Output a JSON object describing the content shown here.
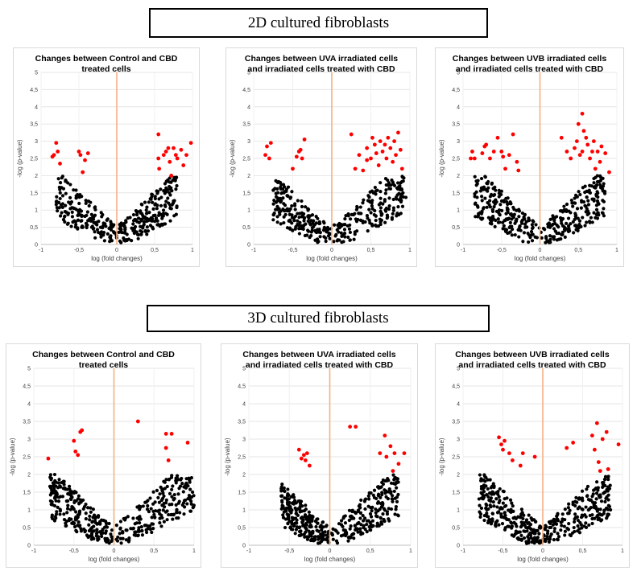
{
  "figure": {
    "section_2d": "2D cultured fibroblasts",
    "section_3d": "3D cultured fibroblasts"
  },
  "chart_data": [
    {
      "type": "scatter",
      "section": "2D cultured fibroblasts",
      "title_lines": [
        "Changes between Control and CBD",
        "treated cells"
      ],
      "xlabel": "log (fold changes)",
      "ylabel": "-log (p-value)",
      "xlim": [
        -1,
        1
      ],
      "ylim": [
        0,
        5
      ],
      "xticks": [
        "-1",
        "-0,5",
        "0",
        "0,5",
        "1"
      ],
      "yticks": [
        "0",
        "0,5",
        "1",
        "1,5",
        "2",
        "2,5",
        "3",
        "3,5",
        "4",
        "4,5",
        "5"
      ],
      "reference_line_x": 0,
      "reference_color": "#f4b183",
      "bulk_color": "#000000",
      "significant_color": "#ff0000",
      "bulk_shape": {
        "xmin": -0.8,
        "xmax": 0.8,
        "min_floor": 0.05,
        "max_ceiling": 2.0,
        "n": 360,
        "seed": 11
      },
      "significant_points": [
        [
          -0.85,
          2.55
        ],
        [
          -0.83,
          2.6
        ],
        [
          -0.8,
          2.95
        ],
        [
          -0.78,
          2.7
        ],
        [
          -0.75,
          2.35
        ],
        [
          -0.5,
          2.7
        ],
        [
          -0.48,
          2.6
        ],
        [
          -0.45,
          2.1
        ],
        [
          -0.42,
          2.45
        ],
        [
          -0.38,
          2.65
        ],
        [
          0.55,
          3.2
        ],
        [
          0.55,
          2.5
        ],
        [
          0.56,
          2.2
        ],
        [
          0.62,
          2.6
        ],
        [
          0.65,
          2.7
        ],
        [
          0.68,
          2.8
        ],
        [
          0.7,
          2.4
        ],
        [
          0.72,
          2.0
        ],
        [
          0.75,
          2.8
        ],
        [
          0.78,
          2.6
        ],
        [
          0.8,
          2.5
        ],
        [
          0.85,
          2.75
        ],
        [
          0.88,
          2.3
        ],
        [
          0.92,
          2.6
        ],
        [
          0.98,
          2.95
        ]
      ]
    },
    {
      "type": "scatter",
      "section": "2D cultured fibroblasts",
      "title_lines": [
        "Changes between UVA irradiated cells",
        "and irradiated cells treated with CBD"
      ],
      "xlabel": "log (fold changes)",
      "ylabel": "-log (p-value)",
      "xlim": [
        -1,
        1
      ],
      "ylim": [
        0,
        5
      ],
      "xticks": [
        "-1",
        "-0,5",
        "0",
        "0,5",
        "1"
      ],
      "yticks": [
        "0",
        "0,5",
        "1",
        "1,5",
        "2",
        "2,5",
        "3",
        "3,5",
        "4",
        "4,5",
        "5"
      ],
      "reference_line_x": 0,
      "reference_color": "#f4b183",
      "bulk_color": "#000000",
      "significant_color": "#ff0000",
      "bulk_shape": {
        "xmin": -0.75,
        "xmax": 0.95,
        "min_floor": 0.05,
        "max_ceiling": 2.0,
        "n": 360,
        "seed": 23
      },
      "significant_points": [
        [
          -0.85,
          2.6
        ],
        [
          -0.83,
          2.85
        ],
        [
          -0.8,
          2.5
        ],
        [
          -0.78,
          2.95
        ],
        [
          -0.5,
          2.2
        ],
        [
          -0.45,
          2.55
        ],
        [
          -0.42,
          2.7
        ],
        [
          -0.4,
          2.75
        ],
        [
          -0.38,
          2.5
        ],
        [
          -0.35,
          3.05
        ],
        [
          0.25,
          3.2
        ],
        [
          0.3,
          2.2
        ],
        [
          0.35,
          2.6
        ],
        [
          0.4,
          2.15
        ],
        [
          0.45,
          2.8
        ],
        [
          0.45,
          2.45
        ],
        [
          0.5,
          2.5
        ],
        [
          0.52,
          3.1
        ],
        [
          0.55,
          2.9
        ],
        [
          0.57,
          2.65
        ],
        [
          0.6,
          2.3
        ],
        [
          0.62,
          3.0
        ],
        [
          0.65,
          2.7
        ],
        [
          0.68,
          2.9
        ],
        [
          0.7,
          2.5
        ],
        [
          0.72,
          3.1
        ],
        [
          0.75,
          2.8
        ],
        [
          0.78,
          2.4
        ],
        [
          0.8,
          3.0
        ],
        [
          0.82,
          2.6
        ],
        [
          0.85,
          3.25
        ],
        [
          0.88,
          2.75
        ],
        [
          0.9,
          2.2
        ]
      ]
    },
    {
      "type": "scatter",
      "section": "2D cultured fibroblasts",
      "title_lines": [
        "Changes between UVB irradiated cells",
        "and irradiated cells treated with CBD"
      ],
      "xlabel": "log (fold changes)",
      "ylabel": "-log (p-value)",
      "xlim": [
        -1,
        1
      ],
      "ylim": [
        0,
        5
      ],
      "xticks": [
        "-1",
        "-0,5",
        "0",
        "0,5",
        "1"
      ],
      "yticks": [
        "0",
        "0,5",
        "1",
        "1,5",
        "2",
        "2,5",
        "3",
        "3,5",
        "4",
        "4,5",
        "5"
      ],
      "reference_line_x": 0,
      "reference_color": "#f4b183",
      "bulk_color": "#000000",
      "significant_color": "#ff0000",
      "bulk_shape": {
        "xmin": -0.85,
        "xmax": 0.85,
        "min_floor": 0.05,
        "max_ceiling": 2.0,
        "n": 380,
        "seed": 37
      },
      "significant_points": [
        [
          -0.9,
          2.5
        ],
        [
          -0.88,
          2.7
        ],
        [
          -0.85,
          2.5
        ],
        [
          -0.75,
          2.65
        ],
        [
          -0.72,
          2.85
        ],
        [
          -0.7,
          2.9
        ],
        [
          -0.65,
          2.5
        ],
        [
          -0.6,
          2.7
        ],
        [
          -0.55,
          3.1
        ],
        [
          -0.5,
          2.7
        ],
        [
          -0.48,
          2.55
        ],
        [
          -0.45,
          2.2
        ],
        [
          -0.4,
          2.6
        ],
        [
          -0.35,
          3.2
        ],
        [
          -0.3,
          2.4
        ],
        [
          -0.28,
          2.15
        ],
        [
          0.28,
          3.1
        ],
        [
          0.35,
          2.7
        ],
        [
          0.4,
          2.5
        ],
        [
          0.45,
          2.8
        ],
        [
          0.48,
          3.0
        ],
        [
          0.5,
          3.5
        ],
        [
          0.52,
          2.6
        ],
        [
          0.55,
          3.8
        ],
        [
          0.55,
          2.7
        ],
        [
          0.57,
          3.3
        ],
        [
          0.6,
          3.1
        ],
        [
          0.62,
          2.9
        ],
        [
          0.65,
          2.5
        ],
        [
          0.68,
          2.7
        ],
        [
          0.7,
          3.0
        ],
        [
          0.72,
          2.2
        ],
        [
          0.75,
          2.7
        ],
        [
          0.78,
          2.4
        ],
        [
          0.8,
          2.85
        ],
        [
          0.85,
          2.65
        ],
        [
          0.9,
          2.1
        ]
      ]
    },
    {
      "type": "scatter",
      "section": "3D cultured fibroblasts",
      "title_lines": [
        "Changes between Control and CBD",
        "treated cells"
      ],
      "xlabel": "log (fold changes)",
      "ylabel": "-log (p-value)",
      "xlim": [
        -1,
        1
      ],
      "ylim": [
        0,
        5
      ],
      "xticks": [
        "-1",
        "-0,5",
        "0",
        "0,5",
        "1"
      ],
      "yticks": [
        "0",
        "0,5",
        "1",
        "1,5",
        "2",
        "2,5",
        "3",
        "3,5",
        "4",
        "4,5",
        "5"
      ],
      "reference_line_x": 0,
      "reference_color": "#f4b183",
      "bulk_color": "#000000",
      "significant_color": "#ff0000",
      "bulk_shape": {
        "xmin": -0.8,
        "xmax": 1.0,
        "min_floor": 0.05,
        "max_ceiling": 2.0,
        "n": 420,
        "seed": 41
      },
      "significant_points": [
        [
          -0.82,
          2.45
        ],
        [
          -0.5,
          2.95
        ],
        [
          -0.48,
          2.65
        ],
        [
          -0.45,
          2.55
        ],
        [
          -0.42,
          3.2
        ],
        [
          -0.4,
          3.25
        ],
        [
          0.3,
          3.5
        ],
        [
          0.65,
          3.15
        ],
        [
          0.65,
          2.75
        ],
        [
          0.68,
          2.4
        ],
        [
          0.72,
          3.15
        ],
        [
          0.92,
          2.9
        ]
      ]
    },
    {
      "type": "scatter",
      "section": "3D cultured fibroblasts",
      "title_lines": [
        "Changes between UVA irradiated cells",
        "and irradiated cells treated with CBD"
      ],
      "xlabel": "log (fold changes)",
      "ylabel": "-log (p-value)",
      "xlim": [
        -1,
        1
      ],
      "ylim": [
        0,
        5
      ],
      "xticks": [
        "-1",
        "-0,5",
        "0",
        "0,5",
        "1"
      ],
      "yticks": [
        "0",
        "0,5",
        "1",
        "1,5",
        "2",
        "2,5",
        "3",
        "3,5",
        "4",
        "4,5",
        "5"
      ],
      "reference_line_x": 0,
      "reference_color": "#f4b183",
      "bulk_color": "#000000",
      "significant_color": "#ff0000",
      "bulk_shape": {
        "xmin": -0.6,
        "xmax": 0.85,
        "min_floor": 0.05,
        "max_ceiling": 2.0,
        "n": 420,
        "seed": 53
      },
      "significant_points": [
        [
          -0.38,
          2.7
        ],
        [
          -0.35,
          2.45
        ],
        [
          -0.32,
          2.55
        ],
        [
          -0.3,
          2.4
        ],
        [
          -0.28,
          2.6
        ],
        [
          -0.25,
          2.25
        ],
        [
          0.25,
          3.35
        ],
        [
          0.32,
          3.35
        ],
        [
          0.62,
          2.6
        ],
        [
          0.68,
          3.1
        ],
        [
          0.7,
          2.5
        ],
        [
          0.75,
          2.8
        ],
        [
          0.78,
          2.1
        ],
        [
          0.8,
          2.6
        ],
        [
          0.85,
          2.3
        ],
        [
          0.92,
          2.6
        ]
      ]
    },
    {
      "type": "scatter",
      "section": "3D cultured fibroblasts",
      "title_lines": [
        "Changes between UVB irradiated cells",
        "and irradiated cells treated with CBD"
      ],
      "xlabel": "log (fold changes)",
      "ylabel": "-log (p-value)",
      "xlim": [
        -1,
        1
      ],
      "ylim": [
        0,
        5
      ],
      "xticks": [
        "-1",
        "-0,5",
        "0",
        "0,5",
        "1"
      ],
      "yticks": [
        "0",
        "0,5",
        "1",
        "1,5",
        "2",
        "2,5",
        "3",
        "3,5",
        "4",
        "4,5",
        "5"
      ],
      "reference_line_x": 0,
      "reference_color": "#f4b183",
      "bulk_color": "#000000",
      "significant_color": "#ff0000",
      "bulk_shape": {
        "xmin": -0.8,
        "xmax": 0.85,
        "min_floor": 0.05,
        "max_ceiling": 2.0,
        "n": 420,
        "seed": 67
      },
      "significant_points": [
        [
          -0.55,
          3.05
        ],
        [
          -0.52,
          2.85
        ],
        [
          -0.5,
          2.7
        ],
        [
          -0.48,
          2.95
        ],
        [
          -0.42,
          2.6
        ],
        [
          -0.38,
          2.4
        ],
        [
          -0.28,
          2.25
        ],
        [
          -0.25,
          2.6
        ],
        [
          -0.1,
          2.5
        ],
        [
          0.3,
          2.75
        ],
        [
          0.38,
          2.9
        ],
        [
          0.62,
          3.1
        ],
        [
          0.65,
          2.7
        ],
        [
          0.68,
          3.45
        ],
        [
          0.7,
          2.35
        ],
        [
          0.72,
          2.1
        ],
        [
          0.75,
          3.0
        ],
        [
          0.8,
          3.2
        ],
        [
          0.82,
          2.15
        ],
        [
          0.95,
          2.85
        ]
      ]
    }
  ]
}
